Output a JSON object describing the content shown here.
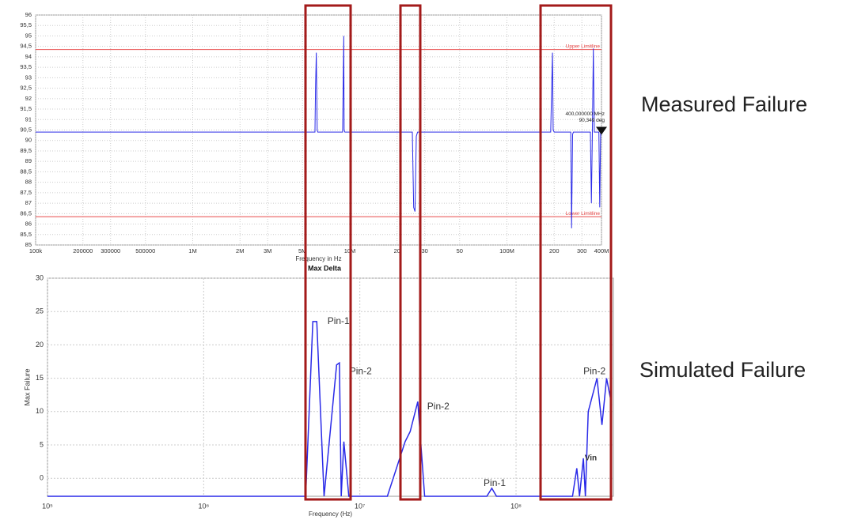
{
  "chart_data": [
    {
      "type": "line",
      "title": null,
      "x_label": "Frequency in Hz",
      "x_scale": "log",
      "xlim": [
        100000,
        400000000
      ],
      "xticks": [
        {
          "value": 100000,
          "label": "100k"
        },
        200000,
        300000,
        500000,
        {
          "value": 1000000,
          "label": "1M"
        },
        {
          "value": 2000000,
          "label": "2M"
        },
        {
          "value": 3000000,
          "label": "3M"
        },
        {
          "value": 5000000,
          "label": "5M"
        },
        {
          "value": 10000000,
          "label": "10M"
        },
        {
          "value": 20000000,
          "label": "20"
        },
        {
          "value": 30000000,
          "label": "30"
        },
        {
          "value": 50000000,
          "label": "50"
        },
        {
          "value": 100000000,
          "label": "100M"
        },
        {
          "value": 200000000,
          "label": "200"
        },
        {
          "value": 300000000,
          "label": "300"
        },
        {
          "value": 400000000,
          "label": "400M"
        }
      ],
      "ylim": [
        85,
        96
      ],
      "yticks": [
        85,
        {
          "value": 85.5,
          "label": "85,5"
        },
        86,
        {
          "value": 86.5,
          "label": "86,5"
        },
        87,
        {
          "value": 87.5,
          "label": "87,5"
        },
        88,
        {
          "value": 88.5,
          "label": "88,5"
        },
        89,
        {
          "value": 89.5,
          "label": "89,5"
        },
        90,
        {
          "value": 90.5,
          "label": "90,5"
        },
        91,
        {
          "value": 91.5,
          "label": "91,5"
        },
        92,
        {
          "value": 92.5,
          "label": "92,5"
        },
        93,
        {
          "value": 93.5,
          "label": "93,5"
        },
        94,
        {
          "value": 94.5,
          "label": "94,5"
        },
        95,
        {
          "value": 95.5,
          "label": "95,5"
        },
        96
      ],
      "grid": true,
      "color": "#2a2ae8",
      "x": [
        100000,
        6000000,
        6050000,
        6120000,
        6200000,
        6250000,
        9000000,
        9150000,
        9200000,
        9300000,
        25000000,
        25500000,
        26000000,
        26500000,
        27000000,
        190000000,
        195000000,
        197000000,
        200000000,
        255000000,
        258000000,
        262000000,
        265000000,
        340000000,
        345000000,
        350000000,
        355000000,
        360000000,
        365000000,
        385000000,
        390000000,
        395000000,
        400000000
      ],
      "values": [
        90.4,
        90.4,
        92.5,
        94.2,
        90.5,
        90.4,
        90.4,
        95.0,
        90.5,
        90.4,
        90.4,
        86.8,
        86.6,
        90.2,
        90.4,
        90.4,
        94.2,
        90.5,
        90.4,
        90.4,
        85.8,
        90.3,
        90.4,
        90.4,
        87.0,
        90.4,
        94.4,
        90.4,
        90.4,
        90.4,
        86.8,
        90.4,
        90.349
      ],
      "limit_lines": [
        {
          "value": 94.35,
          "label": "Upper Limitline",
          "color": "#e84a4a"
        },
        {
          "value": 86.35,
          "label": "Lower Limitline",
          "color": "#e84a4a"
        }
      ],
      "marker": {
        "x": 400000000,
        "y": 90.349,
        "label": [
          "400,000000 MHz",
          "90,349 deg"
        ]
      }
    },
    {
      "type": "line",
      "title": "Max Delta",
      "x_label": "Frequency (Hz)",
      "y_label": "Max Failure",
      "x_scale": "log",
      "xlim": [
        100000,
        420000000
      ],
      "xticks": [
        {
          "value": 100000,
          "label": "10⁵"
        },
        {
          "value": 1000000,
          "label": "10⁶"
        },
        {
          "value": 10000000,
          "label": "10⁷"
        },
        {
          "value": 100000000,
          "label": "10⁸"
        }
      ],
      "ylim": [
        -2.7,
        30
      ],
      "yticks": [
        0,
        5,
        10,
        15,
        20,
        25,
        30
      ],
      "grid": true,
      "color": "#2a2ae8",
      "x": [
        100000,
        4500000,
        5000000,
        5300000,
        5900000,
        7100000,
        7400000,
        7600000,
        7900000,
        8500000,
        15000000,
        19500000,
        21000000,
        23500000,
        26000000,
        65000000,
        70000000,
        75000000,
        230000000,
        245000000,
        255000000,
        270000000,
        278000000,
        290000000,
        330000000,
        355000000,
        380000000,
        410000000
      ],
      "values": [
        -2.7,
        -2.7,
        23.5,
        23.5,
        -2.7,
        17,
        17.3,
        -2.7,
        5.5,
        -2.7,
        -2.7,
        5.5,
        7,
        11.5,
        -2.7,
        -2.7,
        -1.5,
        -2.7,
        -2.7,
        1.5,
        -2.7,
        3,
        -2.7,
        10,
        15,
        8,
        15,
        11
      ],
      "annotations": [
        {
          "text": "Pin-1",
          "x": 6200000,
          "y": 23.5
        },
        {
          "text": "Pin-2",
          "x": 8600000,
          "y": 16
        },
        {
          "text": "Pin-2",
          "x": 27000000,
          "y": 10.7
        },
        {
          "text": "Pin-1",
          "x": 62000000,
          "y": -0.8
        },
        {
          "text": "Pin-2",
          "x": 270000000,
          "y": 16
        },
        {
          "text": "Vin",
          "x": 275000000,
          "y": 3
        }
      ]
    }
  ],
  "side_labels": {
    "measured": "Measured Failure",
    "simulated": "Simulated Failure"
  }
}
